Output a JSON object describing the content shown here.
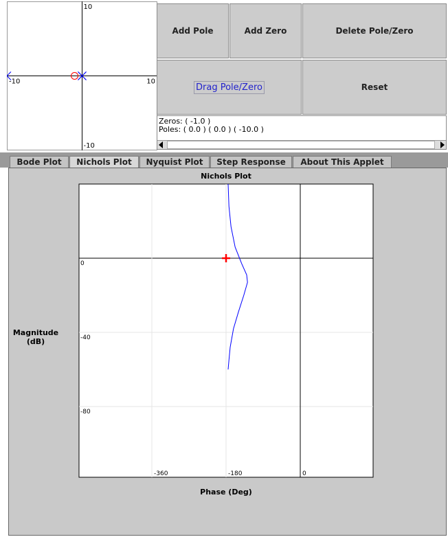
{
  "pole_zero_plot": {
    "xlim": [
      -10,
      10
    ],
    "ylim": [
      -10,
      10
    ],
    "labels": {
      "top": "10",
      "left": "-10",
      "right": "10",
      "bottom": "-10"
    },
    "zeros": [
      [
        -1,
        0
      ]
    ],
    "poles": [
      [
        0,
        0
      ],
      [
        0,
        0
      ],
      [
        -10,
        0
      ]
    ],
    "zero_color": "#ff0000",
    "pole_color": "#0000ff"
  },
  "buttons": [
    "Add Pole",
    "Add Zero",
    "Delete Pole/Zero",
    "Drag Pole/Zero",
    "Reset"
  ],
  "info": {
    "zeros": "Zeros: ( -1.0 )",
    "poles": "Poles: ( 0.0 ) ( 0.0 ) ( -10.0 )"
  },
  "tabs": [
    "Bode Plot",
    "Nichols Plot",
    "Nyquist Plot",
    "Step Response",
    "About This Applet"
  ],
  "selected_tab": 1,
  "chart_data": {
    "type": "line",
    "title": "Nichols Plot",
    "x_label": "Phase (Deg)",
    "y_label": "Magnitude (dB)",
    "xlim": [
      -540,
      180
    ],
    "ylim": [
      -120,
      40
    ],
    "xticks": [
      -360,
      -180,
      0
    ],
    "yticks": [
      0,
      -40,
      -80
    ],
    "series": [
      {
        "color": "#0000ff",
        "x": [
          -175,
          -173,
          -168,
          -158,
          -142,
          -130,
          -128,
          -137,
          -150,
          -162,
          -170,
          -173,
          -175
        ],
        "values": [
          40,
          28,
          17,
          6,
          -3,
          -9,
          -13,
          -20,
          -29,
          -38,
          -48,
          -55,
          -60
        ]
      }
    ],
    "marker": {
      "x": -180,
      "y": 0,
      "color": "#ff0000"
    }
  }
}
